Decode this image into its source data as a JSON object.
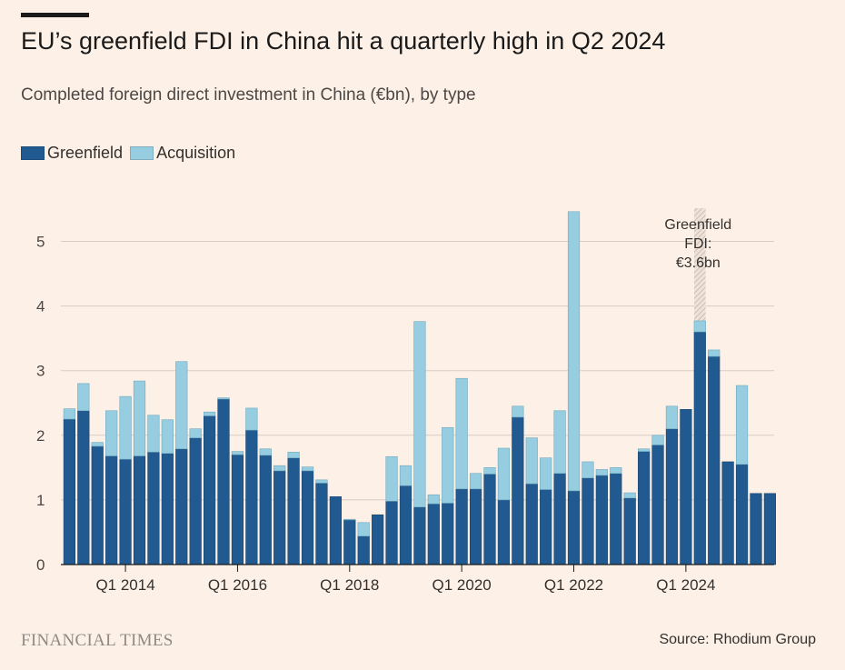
{
  "header": {
    "title": "EU’s greenfield FDI in China hit a quarterly high in Q2 2024",
    "subtitle": "Completed foreign direct investment in China (€bn), by type"
  },
  "footer": {
    "brand": "FINANCIAL TIMES",
    "source": "Source: Rhodium Group"
  },
  "colors": {
    "greenfield": "#215a91",
    "acquisition": "#97cde0",
    "grid": "#d7cdc5",
    "highlight": "#d9d0c8"
  },
  "chart_data": {
    "type": "bar",
    "stacked": true,
    "title": "EU’s greenfield FDI in China hit a quarterly high in Q2 2024",
    "subtitle": "Completed foreign direct investment in China (€bn), by type",
    "legend_position": "top-left",
    "grid": true,
    "ylim": [
      0,
      5.5
    ],
    "yticks": [
      0,
      1,
      2,
      3,
      4,
      5
    ],
    "x_tick_labels": [
      {
        "label": "Q1 2014",
        "index": 4
      },
      {
        "label": "Q1 2016",
        "index": 12
      },
      {
        "label": "Q1 2018",
        "index": 20
      },
      {
        "label": "Q1 2020",
        "index": 28
      },
      {
        "label": "Q1 2022",
        "index": 36
      },
      {
        "label": "Q1 2024",
        "index": 44
      }
    ],
    "categories": [
      "Q1 2013",
      "Q2 2013",
      "Q3 2013",
      "Q4 2013",
      "Q1 2014",
      "Q2 2014",
      "Q3 2014",
      "Q4 2014",
      "Q1 2015",
      "Q2 2015",
      "Q3 2015",
      "Q4 2015",
      "Q1 2016",
      "Q2 2016",
      "Q3 2016",
      "Q4 2016",
      "Q1 2017",
      "Q2 2017",
      "Q3 2017",
      "Q4 2017",
      "Q1 2018",
      "Q2 2018",
      "Q3 2018",
      "Q4 2018",
      "Q1 2019",
      "Q2 2019",
      "Q3 2019",
      "Q4 2019",
      "Q1 2020",
      "Q2 2020",
      "Q3 2020",
      "Q4 2020",
      "Q1 2021",
      "Q2 2021",
      "Q3 2021",
      "Q4 2021",
      "Q1 2022",
      "Q2 2022",
      "Q3 2022",
      "Q4 2022",
      "Q1 2023",
      "Q2 2023",
      "Q3 2023",
      "Q4 2023",
      "Q1 2024",
      "Q2 2024",
      "Q3 2024",
      "Q4 2024",
      "Q1 2025",
      "Q2 2025",
      "Q3 2025",
      "Q4 2025"
    ],
    "series": [
      {
        "name": "Greenfield",
        "color": "#215a91",
        "values": [
          2.25,
          2.38,
          1.83,
          1.68,
          1.63,
          1.68,
          1.74,
          1.72,
          1.79,
          1.96,
          2.3,
          2.56,
          1.7,
          2.08,
          1.69,
          1.45,
          1.65,
          1.45,
          1.26,
          1.05,
          0.69,
          0.44,
          0.77,
          0.98,
          1.22,
          0.89,
          0.94,
          0.95,
          1.17,
          1.17,
          1.4,
          1.0,
          2.28,
          1.25,
          1.16,
          1.41,
          1.14,
          1.34,
          1.38,
          1.41,
          1.03,
          1.75,
          1.85,
          2.1,
          2.4,
          3.6,
          3.22,
          1.59,
          1.55,
          1.1,
          1.1,
          null
        ]
      },
      {
        "name": "Acquisition",
        "color": "#97cde0",
        "values": [
          0.16,
          0.42,
          0.06,
          0.7,
          0.97,
          1.16,
          0.57,
          0.52,
          1.35,
          0.14,
          0.06,
          0.02,
          0.05,
          0.34,
          0.1,
          0.08,
          0.09,
          0.06,
          0.05,
          0.0,
          0.01,
          0.21,
          0.0,
          0.69,
          0.31,
          2.87,
          0.14,
          1.17,
          1.71,
          0.24,
          0.1,
          0.8,
          0.17,
          0.71,
          0.49,
          0.97,
          4.32,
          0.25,
          0.09,
          0.09,
          0.08,
          0.04,
          0.15,
          0.35,
          0.0,
          0.17,
          0.1,
          0.0,
          1.22,
          0.0,
          0.0,
          null
        ]
      }
    ],
    "annotation": {
      "text_lines": [
        "Greenfield",
        "FDI:",
        "€3.6bn"
      ],
      "category": "Q2 2024"
    }
  }
}
